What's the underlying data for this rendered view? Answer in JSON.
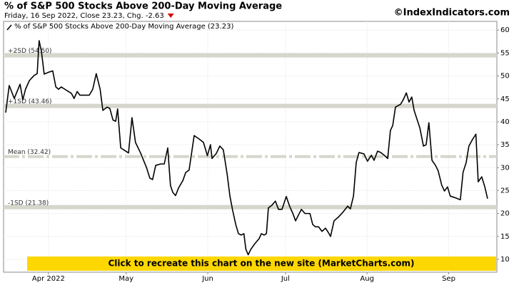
{
  "header": {
    "title": "% of S&P 500 Stocks Above 200-Day Moving Average",
    "subtitle": "Friday, 16 Sep 2022, Close 23.23, Chg. -2.63",
    "copyright": "©IndexIndicators.com"
  },
  "banner": "Click to recreate this chart on the new site (MarketCharts.com)",
  "chart_data": {
    "type": "line",
    "xlim": [
      -0.55,
      126.4
    ],
    "ylim": [
      7.2,
      61.9
    ],
    "yticks": [
      10,
      15,
      20,
      25,
      30,
      35,
      40,
      45,
      50,
      55,
      60
    ],
    "xticks": [
      {
        "value": 11,
        "label": "Apr 2022"
      },
      {
        "value": 31,
        "label": "May"
      },
      {
        "value": 52,
        "label": "Jun"
      },
      {
        "value": 72,
        "label": "Jul"
      },
      {
        "value": 93,
        "label": "Aug"
      },
      {
        "value": 114,
        "label": "Sep"
      }
    ],
    "grid": true,
    "reference_lines": [
      {
        "value": 54.5,
        "label": "+2SD (54.50)"
      },
      {
        "value": 43.46,
        "label": "+1SD (43.46)"
      },
      {
        "value": 32.42,
        "label": "Mean (32.42)"
      },
      {
        "value": 21.38,
        "label": "-1SD (21.38)"
      }
    ],
    "x": [
      0,
      0.9,
      2.2,
      3.7,
      4.4,
      5.1,
      6.1,
      7.3,
      8.1,
      8.6,
      9.2,
      9.9,
      11.0,
      12.1,
      12.9,
      13.6,
      14.3,
      15.4,
      16.9,
      17.6,
      18.4,
      19.1,
      21.5,
      22.4,
      23.3,
      24.3,
      25.0,
      26.1,
      26.8,
      27.6,
      28.3,
      28.8,
      29.6,
      30.7,
      31.6,
      32.5,
      33.4,
      34.7,
      36.2,
      37.1,
      37.8,
      38.6,
      39.9,
      40.8,
      41.7,
      42.4,
      43.0,
      43.7,
      44.5,
      45.6,
      46.3,
      47.2,
      48.5,
      50.0,
      50.9,
      51.9,
      52.7,
      53.1,
      54.2,
      55.1,
      56.0,
      57.0,
      57.7,
      58.4,
      59.2,
      59.9,
      60.6,
      61.3,
      61.8,
      62.4,
      63.1,
      64.1,
      65.2,
      65.8,
      66.5,
      67.1,
      67.6,
      68.5,
      69.4,
      70.2,
      71.1,
      72.2,
      73.1,
      73.9,
      74.6,
      75.3,
      76.1,
      77.0,
      78.3,
      79.0,
      79.7,
      80.5,
      81.4,
      82.3,
      83.0,
      83.6,
      84.5,
      85.6,
      86.7,
      88.0,
      88.7,
      89.5,
      90.2,
      90.9,
      92.2,
      93.1,
      94.1,
      94.8,
      95.7,
      96.5,
      97.4,
      98.3,
      99.0,
      99.6,
      100.3,
      101.6,
      102.3,
      103.1,
      103.8,
      104.5,
      105.1,
      106.6,
      107.5,
      108.2,
      108.9,
      109.7,
      110.6,
      111.3,
      112.2,
      112.9,
      113.7,
      114.4,
      115.8,
      117.0,
      117.7,
      118.5,
      119.2,
      120.1,
      121.0,
      121.6,
      122.5,
      123.3,
      124.0
    ],
    "series": [
      {
        "name": "% of S&P 500 Stocks Above 200-Day Moving Average (23.23)",
        "color": "#000000",
        "values": [
          42.0,
          47.9,
          45.1,
          48.2,
          44.8,
          47.1,
          49.0,
          50.1,
          50.5,
          57.7,
          55.3,
          50.4,
          50.8,
          51.1,
          47.6,
          47.1,
          47.6,
          47.0,
          46.2,
          45.1,
          46.6,
          45.8,
          45.8,
          47.1,
          50.5,
          47.1,
          42.5,
          43.2,
          42.9,
          40.4,
          40.1,
          42.8,
          34.3,
          33.7,
          33.2,
          40.9,
          35.5,
          33.2,
          30.1,
          27.7,
          27.4,
          30.5,
          30.8,
          30.8,
          34.3,
          26.1,
          24.6,
          23.9,
          25.6,
          27.2,
          28.9,
          29.5,
          37.0,
          36.1,
          35.5,
          32.6,
          35.0,
          32.0,
          33.1,
          34.7,
          33.9,
          28.5,
          23.8,
          20.7,
          17.6,
          15.6,
          15.3,
          15.6,
          12.2,
          11.0,
          12.2,
          13.4,
          14.5,
          15.6,
          15.3,
          15.6,
          21.2,
          21.8,
          22.7,
          20.9,
          20.9,
          23.7,
          21.5,
          20.0,
          18.4,
          19.6,
          20.9,
          20.0,
          20.0,
          17.6,
          17.1,
          17.1,
          16.1,
          16.8,
          15.9,
          15.0,
          18.4,
          19.2,
          20.2,
          21.6,
          21.0,
          23.8,
          31.1,
          33.3,
          33.0,
          31.4,
          32.7,
          31.6,
          33.6,
          33.3,
          32.7,
          32.0,
          38.1,
          39.2,
          43.2,
          43.8,
          44.8,
          46.3,
          44.3,
          45.4,
          42.5,
          38.6,
          34.7,
          35.0,
          39.8,
          31.6,
          30.5,
          29.3,
          26.2,
          24.9,
          25.8,
          23.8,
          23.4,
          23.0,
          29.0,
          31.1,
          34.7,
          36.1,
          37.3,
          26.9,
          28.0,
          25.8,
          23.23
        ]
      }
    ]
  }
}
